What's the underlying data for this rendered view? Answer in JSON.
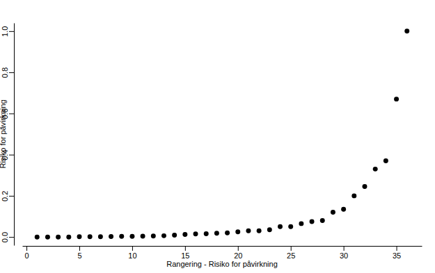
{
  "chart_data": {
    "type": "scatter",
    "x_label": "Rangering - Risiko for påvirkning",
    "y_label": "Risiko for påvirkning",
    "x": [
      1,
      2,
      3,
      4,
      5,
      6,
      7,
      8,
      9,
      10,
      11,
      12,
      13,
      14,
      15,
      16,
      17,
      18,
      19,
      20,
      21,
      22,
      23,
      24,
      25,
      26,
      27,
      28,
      29,
      30,
      31,
      32,
      33,
      34,
      35,
      36
    ],
    "values": [
      0.0,
      0.0,
      0.0,
      0.0,
      0.001,
      0.001,
      0.001,
      0.002,
      0.003,
      0.003,
      0.004,
      0.005,
      0.006,
      0.009,
      0.012,
      0.015,
      0.016,
      0.018,
      0.02,
      0.025,
      0.03,
      0.03,
      0.035,
      0.05,
      0.05,
      0.065,
      0.075,
      0.08,
      0.12,
      0.135,
      0.2,
      0.245,
      0.33,
      0.37,
      0.67,
      1.0
    ],
    "color": "#000000",
    "marker": "circle",
    "xlim": [
      -0.4,
      37.4
    ],
    "xticks": [
      0,
      5,
      10,
      15,
      20,
      25,
      30,
      35
    ],
    "ylim": [
      -0.04,
      1.04
    ],
    "yticks": [
      {
        "value": 0,
        "label": "0.0"
      },
      0.2,
      0.4,
      0.6,
      0.8,
      {
        "value": 1,
        "label": "1.0"
      }
    ],
    "grid": false
  }
}
